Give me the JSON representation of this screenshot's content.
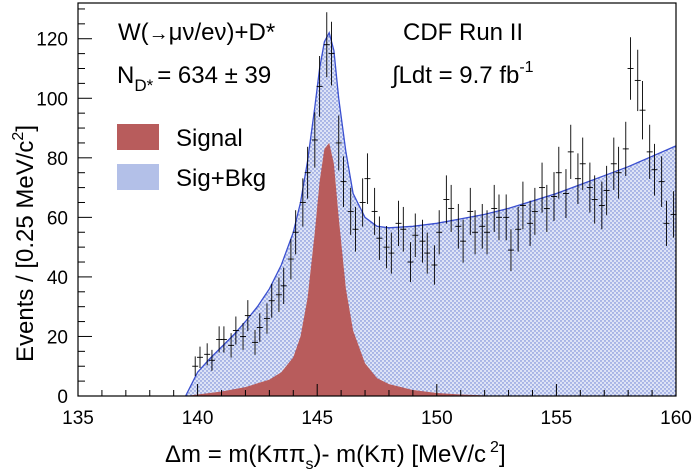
{
  "chart_data": {
    "type": "histogram",
    "experiment": "CDF Run II",
    "channel": {
      "prefix": "W(",
      "arrow": "→",
      "decay": "μν/eν)+D*"
    },
    "yield": {
      "prefix": "N",
      "sub": "D*",
      "value": "= 634 ± 39"
    },
    "luminosity": {
      "integral": "∫Ldt = 9.7 fb",
      "exp": "-1"
    },
    "xlabel": {
      "main": "Δm = m(Kππ",
      "sub": "s",
      "mid": ")- m(Kπ) [MeV/c",
      "sup": "2",
      "end": "]"
    },
    "ylabel": {
      "main": "Events / [0.25 MeV/c",
      "sup": "2",
      "end": "]"
    },
    "xlim": [
      135,
      160
    ],
    "ylim": [
      0,
      132
    ],
    "xticks": [
      "135",
      "140",
      "145",
      "150",
      "155",
      "160"
    ],
    "yticks": [
      "0",
      "20",
      "40",
      "60",
      "80",
      "100",
      "120"
    ],
    "legend": {
      "position": "left",
      "entries": [
        {
          "label": "Signal",
          "color": "#b85c5c"
        },
        {
          "label": "Sig+Bkg",
          "color": "#b3c0e8"
        }
      ]
    },
    "colors": {
      "signal": "#b85c5c",
      "background_fill": "#b3c0e8",
      "total_curve": "#3a4fd0",
      "data_points": "#000000"
    },
    "fit_total": {
      "x": [
        139.5,
        140.0,
        140.5,
        141.0,
        141.5,
        142.0,
        142.5,
        143.0,
        143.5,
        144.0,
        144.3,
        144.6,
        144.9,
        145.1,
        145.3,
        145.5,
        145.7,
        145.9,
        146.2,
        146.5,
        147.0,
        147.5,
        148.0,
        149.0,
        150.0,
        151.0,
        152.0,
        153.0,
        154.0,
        155.0,
        156.0,
        157.0,
        158.0,
        159.0,
        160.0
      ],
      "y": [
        0,
        8,
        12.5,
        16.5,
        20.5,
        25,
        30,
        36,
        44,
        55,
        65,
        79,
        97,
        110,
        119,
        122,
        116,
        100,
        82,
        68,
        60,
        57,
        56.5,
        57,
        58,
        59.5,
        61,
        63,
        65.5,
        68,
        71,
        74,
        77,
        80.5,
        84
      ]
    },
    "signal": {
      "x": [
        139.5,
        140.0,
        141.0,
        142.0,
        143.0,
        143.5,
        144.0,
        144.3,
        144.6,
        144.9,
        145.1,
        145.3,
        145.5,
        145.7,
        145.9,
        146.2,
        146.5,
        147.0,
        147.5,
        148.0,
        149.0,
        150.0,
        151.0,
        152.0,
        153.0
      ],
      "y": [
        0,
        0.5,
        1.5,
        3,
        5.5,
        8,
        13,
        20,
        33,
        55,
        72,
        83,
        85,
        78,
        60,
        36,
        22,
        11,
        6,
        4,
        2,
        1,
        0.5,
        0.2,
        0
      ]
    },
    "data_points": {
      "x": [
        139.9,
        140.1,
        140.4,
        140.6,
        140.9,
        141.1,
        141.4,
        141.6,
        141.9,
        142.1,
        142.4,
        142.6,
        142.9,
        143.1,
        143.4,
        143.6,
        143.9,
        144.1,
        144.4,
        144.6,
        144.9,
        145.1,
        145.4,
        145.6,
        145.9,
        146.1,
        146.4,
        146.6,
        146.9,
        147.1,
        147.4,
        147.6,
        147.9,
        148.1,
        148.4,
        148.6,
        148.9,
        149.1,
        149.4,
        149.6,
        149.9,
        150.1,
        150.4,
        150.6,
        150.9,
        151.1,
        151.4,
        151.6,
        151.9,
        152.1,
        152.4,
        152.6,
        152.9,
        153.1,
        153.4,
        153.6,
        153.9,
        154.1,
        154.4,
        154.6,
        154.9,
        155.1,
        155.4,
        155.6,
        155.9,
        156.1,
        156.4,
        156.6,
        156.9,
        157.1,
        157.4,
        157.6,
        157.9,
        158.1,
        158.4,
        158.6,
        158.9,
        159.1,
        159.4,
        159.6,
        159.9
      ],
      "y": [
        10,
        13,
        14,
        12,
        19,
        19,
        17,
        22,
        20,
        27,
        18,
        23,
        26,
        32,
        34,
        37,
        46,
        55,
        65,
        75,
        86,
        104,
        118,
        115,
        85,
        72,
        62,
        56,
        65,
        73,
        62,
        53,
        50,
        48,
        58,
        56,
        45,
        54,
        52,
        48,
        44,
        55,
        66,
        63,
        57,
        52,
        62,
        55,
        57,
        55,
        63,
        60,
        60,
        49,
        56,
        64,
        58,
        62,
        70,
        63,
        67,
        75,
        68,
        82,
        73,
        78,
        70,
        66,
        64,
        69,
        78,
        75,
        83,
        110,
        106,
        96,
        82,
        76,
        72,
        58,
        61
      ],
      "err": [
        3.3,
        3.6,
        3.7,
        3.5,
        4.4,
        4.4,
        4.1,
        4.7,
        4.5,
        5.2,
        4.2,
        4.8,
        5.1,
        5.7,
        5.8,
        6.1,
        6.8,
        7.4,
        8.1,
        8.7,
        9.3,
        10.2,
        10.9,
        10.7,
        9.2,
        8.5,
        7.9,
        7.5,
        8.1,
        8.5,
        7.9,
        7.3,
        7.1,
        6.9,
        7.6,
        7.5,
        6.7,
        7.3,
        7.2,
        6.9,
        6.6,
        7.4,
        8.1,
        7.9,
        7.5,
        7.2,
        7.9,
        7.4,
        7.5,
        7.4,
        7.9,
        7.7,
        7.7,
        7.0,
        7.5,
        8.0,
        7.6,
        7.9,
        8.4,
        7.9,
        8.2,
        8.7,
        8.2,
        9.1,
        8.5,
        8.8,
        8.4,
        8.1,
        8.0,
        8.3,
        8.8,
        8.7,
        9.1,
        10.5,
        10.3,
        9.8,
        9.1,
        8.7,
        8.5,
        7.6,
        7.8
      ]
    }
  }
}
